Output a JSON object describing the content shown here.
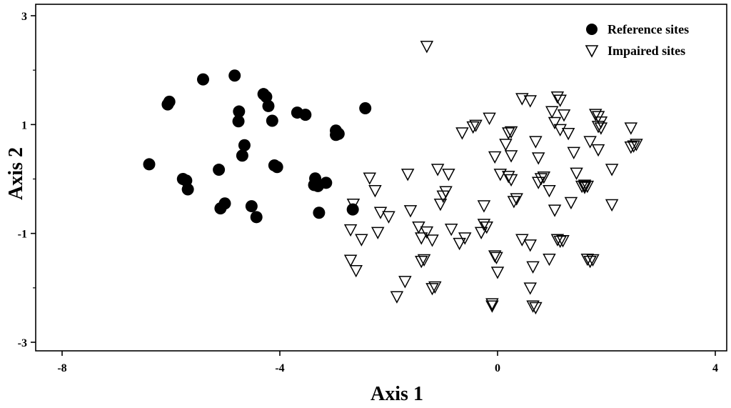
{
  "chart_data": {
    "type": "scatter",
    "xlabel": "Axis 1",
    "ylabel": "Axis 2",
    "xlim": [
      -8,
      4
    ],
    "ylim": [
      -3,
      3
    ],
    "xticks": [
      -8,
      -4,
      0,
      4
    ],
    "yticks": [
      -3,
      -1,
      1,
      3
    ],
    "xtick_labels": [
      "-8",
      "-4",
      "0",
      "4"
    ],
    "ytick_labels": [
      "-3",
      "-1",
      "1",
      "3"
    ],
    "grid": false,
    "legend_position": "top-right",
    "series": [
      {
        "name": "Reference sites",
        "marker": "filled-circle",
        "color": "#000000",
        "points": [
          [
            -6.4,
            0.27
          ],
          [
            -6.06,
            1.37
          ],
          [
            -6.03,
            1.42
          ],
          [
            -5.78,
            0.0
          ],
          [
            -5.72,
            -0.03
          ],
          [
            -5.69,
            -0.19
          ],
          [
            -5.41,
            1.83
          ],
          [
            -5.12,
            0.17
          ],
          [
            -5.09,
            -0.54
          ],
          [
            -5.01,
            -0.45
          ],
          [
            -4.83,
            1.9
          ],
          [
            -4.76,
            1.06
          ],
          [
            -4.75,
            1.24
          ],
          [
            -4.69,
            0.43
          ],
          [
            -4.65,
            0.62
          ],
          [
            -4.52,
            -0.5
          ],
          [
            -4.43,
            -0.7
          ],
          [
            -4.3,
            1.56
          ],
          [
            -4.25,
            1.51
          ],
          [
            -4.21,
            1.34
          ],
          [
            -4.14,
            1.07
          ],
          [
            -4.1,
            0.25
          ],
          [
            -4.05,
            0.22
          ],
          [
            -3.68,
            1.22
          ],
          [
            -3.53,
            1.18
          ],
          [
            -3.37,
            -0.11
          ],
          [
            -3.35,
            0.01
          ],
          [
            -3.3,
            -0.13
          ],
          [
            -3.28,
            -0.62
          ],
          [
            -3.15,
            -0.07
          ],
          [
            -2.97,
            0.89
          ],
          [
            -2.97,
            0.81
          ],
          [
            -2.92,
            0.83
          ],
          [
            -2.66,
            -0.56
          ],
          [
            -2.43,
            1.3
          ]
        ]
      },
      {
        "name": "Impaired sites",
        "marker": "open-triangle-down",
        "color": "#000000",
        "points": [
          [
            -1.3,
            2.45
          ],
          [
            0.45,
            1.49
          ],
          [
            0.6,
            1.45
          ],
          [
            1.1,
            1.52
          ],
          [
            1.15,
            1.46
          ],
          [
            1.8,
            1.2
          ],
          [
            1.85,
            1.16
          ],
          [
            1.9,
            1.06
          ],
          [
            1.0,
            1.25
          ],
          [
            1.22,
            1.19
          ],
          [
            -0.15,
            1.13
          ],
          [
            -0.4,
            1.0
          ],
          [
            -0.45,
            0.97
          ],
          [
            -0.65,
            0.86
          ],
          [
            1.05,
            1.05
          ],
          [
            1.15,
            0.92
          ],
          [
            1.85,
            0.98
          ],
          [
            1.9,
            0.95
          ],
          [
            2.45,
            0.95
          ],
          [
            0.2,
            0.86
          ],
          [
            0.25,
            0.88
          ],
          [
            1.3,
            0.85
          ],
          [
            0.7,
            0.7
          ],
          [
            1.7,
            0.7
          ],
          [
            2.55,
            0.65
          ],
          [
            2.5,
            0.62
          ],
          [
            2.45,
            0.6
          ],
          [
            1.85,
            0.55
          ],
          [
            0.15,
            0.65
          ],
          [
            1.4,
            0.5
          ],
          [
            0.25,
            0.44
          ],
          [
            -0.05,
            0.42
          ],
          [
            0.75,
            0.4
          ],
          [
            2.1,
            0.19
          ],
          [
            -1.65,
            0.1
          ],
          [
            -1.1,
            0.19
          ],
          [
            -0.9,
            0.1
          ],
          [
            0.05,
            0.1
          ],
          [
            1.45,
            0.12
          ],
          [
            0.2,
            0.06
          ],
          [
            0.25,
            0.0
          ],
          [
            0.85,
            0.05
          ],
          [
            0.8,
            0.02
          ],
          [
            0.75,
            -0.05
          ],
          [
            1.6,
            -0.1
          ],
          [
            1.55,
            -0.12
          ],
          [
            1.6,
            -0.14
          ],
          [
            1.65,
            -0.12
          ],
          [
            -2.35,
            0.03
          ],
          [
            -2.25,
            -0.2
          ],
          [
            -0.95,
            -0.22
          ],
          [
            -1.0,
            -0.3
          ],
          [
            0.35,
            -0.35
          ],
          [
            0.3,
            -0.4
          ],
          [
            0.95,
            -0.2
          ],
          [
            2.1,
            -0.46
          ],
          [
            1.35,
            -0.42
          ],
          [
            -2.65,
            -0.45
          ],
          [
            -2.15,
            -0.6
          ],
          [
            -2.0,
            -0.68
          ],
          [
            -1.6,
            -0.57
          ],
          [
            -1.05,
            -0.45
          ],
          [
            -0.25,
            -0.48
          ],
          [
            1.05,
            -0.56
          ],
          [
            -2.7,
            -0.92
          ],
          [
            -2.5,
            -1.1
          ],
          [
            -2.2,
            -0.97
          ],
          [
            -1.45,
            -0.87
          ],
          [
            -1.3,
            -0.96
          ],
          [
            -0.85,
            -0.91
          ],
          [
            -0.3,
            -0.97
          ],
          [
            -0.2,
            -0.87
          ],
          [
            -0.25,
            -0.82
          ],
          [
            -1.4,
            -1.07
          ],
          [
            -1.2,
            -1.11
          ],
          [
            -0.6,
            -1.07
          ],
          [
            -0.7,
            -1.17
          ],
          [
            0.45,
            -1.1
          ],
          [
            0.6,
            -1.2
          ],
          [
            1.1,
            -1.1
          ],
          [
            1.15,
            -1.13
          ],
          [
            1.2,
            -1.12
          ],
          [
            -2.7,
            -1.48
          ],
          [
            -2.6,
            -1.67
          ],
          [
            -1.4,
            -1.5
          ],
          [
            -1.35,
            -1.47
          ],
          [
            -0.05,
            -1.4
          ],
          [
            -0.02,
            -1.43
          ],
          [
            1.65,
            -1.46
          ],
          [
            1.7,
            -1.5
          ],
          [
            1.75,
            -1.47
          ],
          [
            0.95,
            -1.46
          ],
          [
            0.65,
            -1.6
          ],
          [
            0.6,
            -1.99
          ],
          [
            -1.7,
            -1.87
          ],
          [
            -1.15,
            -1.97
          ],
          [
            -1.2,
            -2.0
          ],
          [
            0.0,
            -1.7
          ],
          [
            -1.85,
            -2.15
          ],
          [
            -0.1,
            -2.28
          ],
          [
            -0.1,
            -2.32
          ],
          [
            0.65,
            -2.32
          ],
          [
            0.7,
            -2.35
          ]
        ]
      }
    ]
  }
}
